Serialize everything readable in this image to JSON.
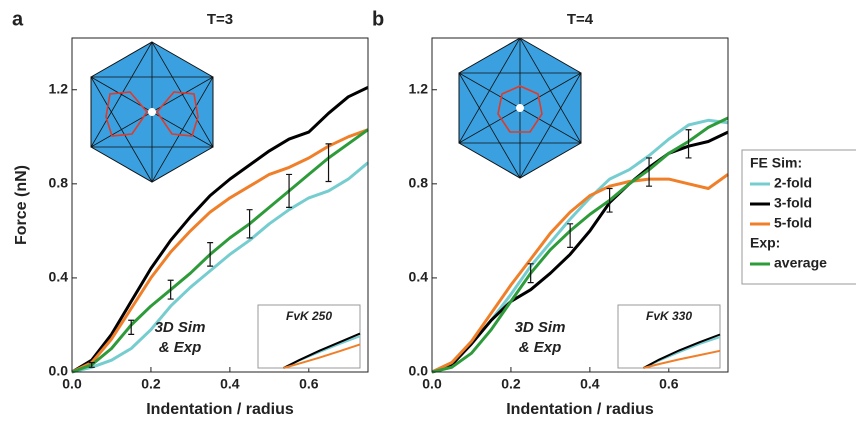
{
  "chart_data": [
    {
      "type": "line",
      "panel": "a",
      "title": "T=3",
      "x_label": "Indentation / radius",
      "y_label": "Force (nN)",
      "xlim": [
        0,
        0.75
      ],
      "ylim": [
        0,
        1.42
      ],
      "xticks": [
        {
          "value": 0,
          "label": "0.0"
        },
        {
          "value": 0.2,
          "label": "0.2"
        },
        {
          "value": 0.4,
          "label": "0.4"
        },
        {
          "value": 0.6,
          "label": "0.6"
        }
      ],
      "yticks": [
        {
          "value": 0,
          "label": "0.0"
        },
        {
          "value": 0.4,
          "label": "0.4"
        },
        {
          "value": 0.8,
          "label": "0.8"
        },
        {
          "value": 1.2,
          "label": "1.2"
        }
      ],
      "x": [
        0,
        0.05,
        0.1,
        0.15,
        0.2,
        0.25,
        0.3,
        0.35,
        0.4,
        0.45,
        0.5,
        0.55,
        0.6,
        0.65,
        0.7,
        0.75
      ],
      "series": [
        {
          "name": "2-fold",
          "color": "#76cdd0",
          "values": [
            0,
            0.02,
            0.05,
            0.1,
            0.18,
            0.28,
            0.36,
            0.43,
            0.5,
            0.56,
            0.63,
            0.69,
            0.74,
            0.77,
            0.82,
            0.89
          ]
        },
        {
          "name": "3-fold",
          "color": "#000000",
          "values": [
            0,
            0.05,
            0.16,
            0.3,
            0.44,
            0.56,
            0.66,
            0.75,
            0.82,
            0.88,
            0.94,
            0.99,
            1.02,
            1.1,
            1.17,
            1.21
          ]
        },
        {
          "name": "5-fold",
          "color": "#f07f2a",
          "values": [
            0,
            0.04,
            0.14,
            0.27,
            0.4,
            0.51,
            0.6,
            0.68,
            0.74,
            0.79,
            0.84,
            0.87,
            0.91,
            0.96,
            1.0,
            1.03
          ]
        },
        {
          "name": "average",
          "color": "#2e9b3a",
          "values": [
            0,
            0.03,
            0.1,
            0.2,
            0.28,
            0.35,
            0.42,
            0.5,
            0.57,
            0.63,
            0.7,
            0.77,
            0.84,
            0.91,
            0.97,
            1.03
          ]
        }
      ],
      "error_bars": {
        "x": [
          0.05,
          0.15,
          0.25,
          0.35,
          0.45,
          0.55,
          0.65
        ],
        "values": [
          0.03,
          0.19,
          0.35,
          0.5,
          0.63,
          0.77,
          0.89
        ],
        "errors": [
          0.01,
          0.03,
          0.04,
          0.05,
          0.06,
          0.07,
          0.08
        ]
      },
      "annotation": [
        "3D Sim",
        "& Exp"
      ],
      "inset": {
        "label": "FvK 250",
        "xlim": [
          0,
          1
        ],
        "ylim": [
          0,
          1
        ],
        "x": [
          0.25,
          0.4,
          0.6,
          0.8,
          1.0
        ],
        "series": [
          {
            "color": "#76cdd0",
            "values": [
              0,
              0.17,
              0.37,
              0.56,
              0.74
            ]
          },
          {
            "color": "#000000",
            "values": [
              0,
              0.18,
              0.4,
              0.6,
              0.8
            ]
          },
          {
            "color": "#f07f2a",
            "values": [
              0,
              0.1,
              0.24,
              0.39,
              0.55
            ]
          }
        ]
      }
    },
    {
      "type": "line",
      "panel": "b",
      "title": "T=4",
      "x_label": "Indentation / radius",
      "xlim": [
        0,
        0.75
      ],
      "ylim": [
        0,
        1.42
      ],
      "xticks": [
        {
          "value": 0,
          "label": "0.0"
        },
        {
          "value": 0.2,
          "label": "0.2"
        },
        {
          "value": 0.4,
          "label": "0.4"
        },
        {
          "value": 0.6,
          "label": "0.6"
        }
      ],
      "yticks": [
        {
          "value": 0,
          "label": "0.0"
        },
        {
          "value": 0.4,
          "label": "0.4"
        },
        {
          "value": 0.8,
          "label": "0.8"
        },
        {
          "value": 1.2,
          "label": "1.2"
        }
      ],
      "x": [
        0,
        0.05,
        0.1,
        0.15,
        0.2,
        0.25,
        0.3,
        0.35,
        0.4,
        0.45,
        0.5,
        0.55,
        0.6,
        0.65,
        0.7,
        0.75
      ],
      "series": [
        {
          "name": "2-fold",
          "color": "#76cdd0",
          "values": [
            0,
            0.04,
            0.12,
            0.22,
            0.33,
            0.45,
            0.55,
            0.65,
            0.74,
            0.82,
            0.86,
            0.92,
            0.99,
            1.05,
            1.07,
            1.06
          ]
        },
        {
          "name": "3-fold",
          "color": "#000000",
          "values": [
            0,
            0.03,
            0.12,
            0.22,
            0.3,
            0.35,
            0.42,
            0.5,
            0.6,
            0.72,
            0.8,
            0.87,
            0.93,
            0.96,
            0.98,
            1.02
          ]
        },
        {
          "name": "5-fold",
          "color": "#f07f2a",
          "values": [
            0,
            0.04,
            0.13,
            0.25,
            0.37,
            0.48,
            0.59,
            0.68,
            0.75,
            0.79,
            0.81,
            0.82,
            0.82,
            0.8,
            0.78,
            0.84
          ]
        },
        {
          "name": "average",
          "color": "#2e9b3a",
          "values": [
            0,
            0.02,
            0.08,
            0.18,
            0.3,
            0.42,
            0.52,
            0.6,
            0.67,
            0.73,
            0.8,
            0.86,
            0.93,
            0.98,
            1.04,
            1.08
          ]
        }
      ],
      "error_bars": {
        "x": [
          0.25,
          0.35,
          0.45,
          0.55,
          0.65
        ],
        "values": [
          0.42,
          0.58,
          0.73,
          0.85,
          0.97
        ],
        "errors": [
          0.04,
          0.05,
          0.05,
          0.06,
          0.06
        ]
      },
      "annotation": [
        "3D Sim",
        "& Exp"
      ],
      "inset": {
        "label": "FvK 330",
        "xlim": [
          0,
          1
        ],
        "ylim": [
          0,
          1
        ],
        "x": [
          0.25,
          0.4,
          0.6,
          0.8,
          1.0
        ],
        "series": [
          {
            "color": "#76cdd0",
            "values": [
              0,
              0.17,
              0.37,
              0.56,
              0.72
            ]
          },
          {
            "color": "#000000",
            "values": [
              0,
              0.19,
              0.41,
              0.6,
              0.78
            ]
          },
          {
            "color": "#f07f2a",
            "values": [
              0,
              0.09,
              0.2,
              0.3,
              0.4
            ]
          }
        ]
      },
      "legend": {
        "groups": [
          "FE Sim:",
          "Exp:"
        ]
      }
    }
  ]
}
